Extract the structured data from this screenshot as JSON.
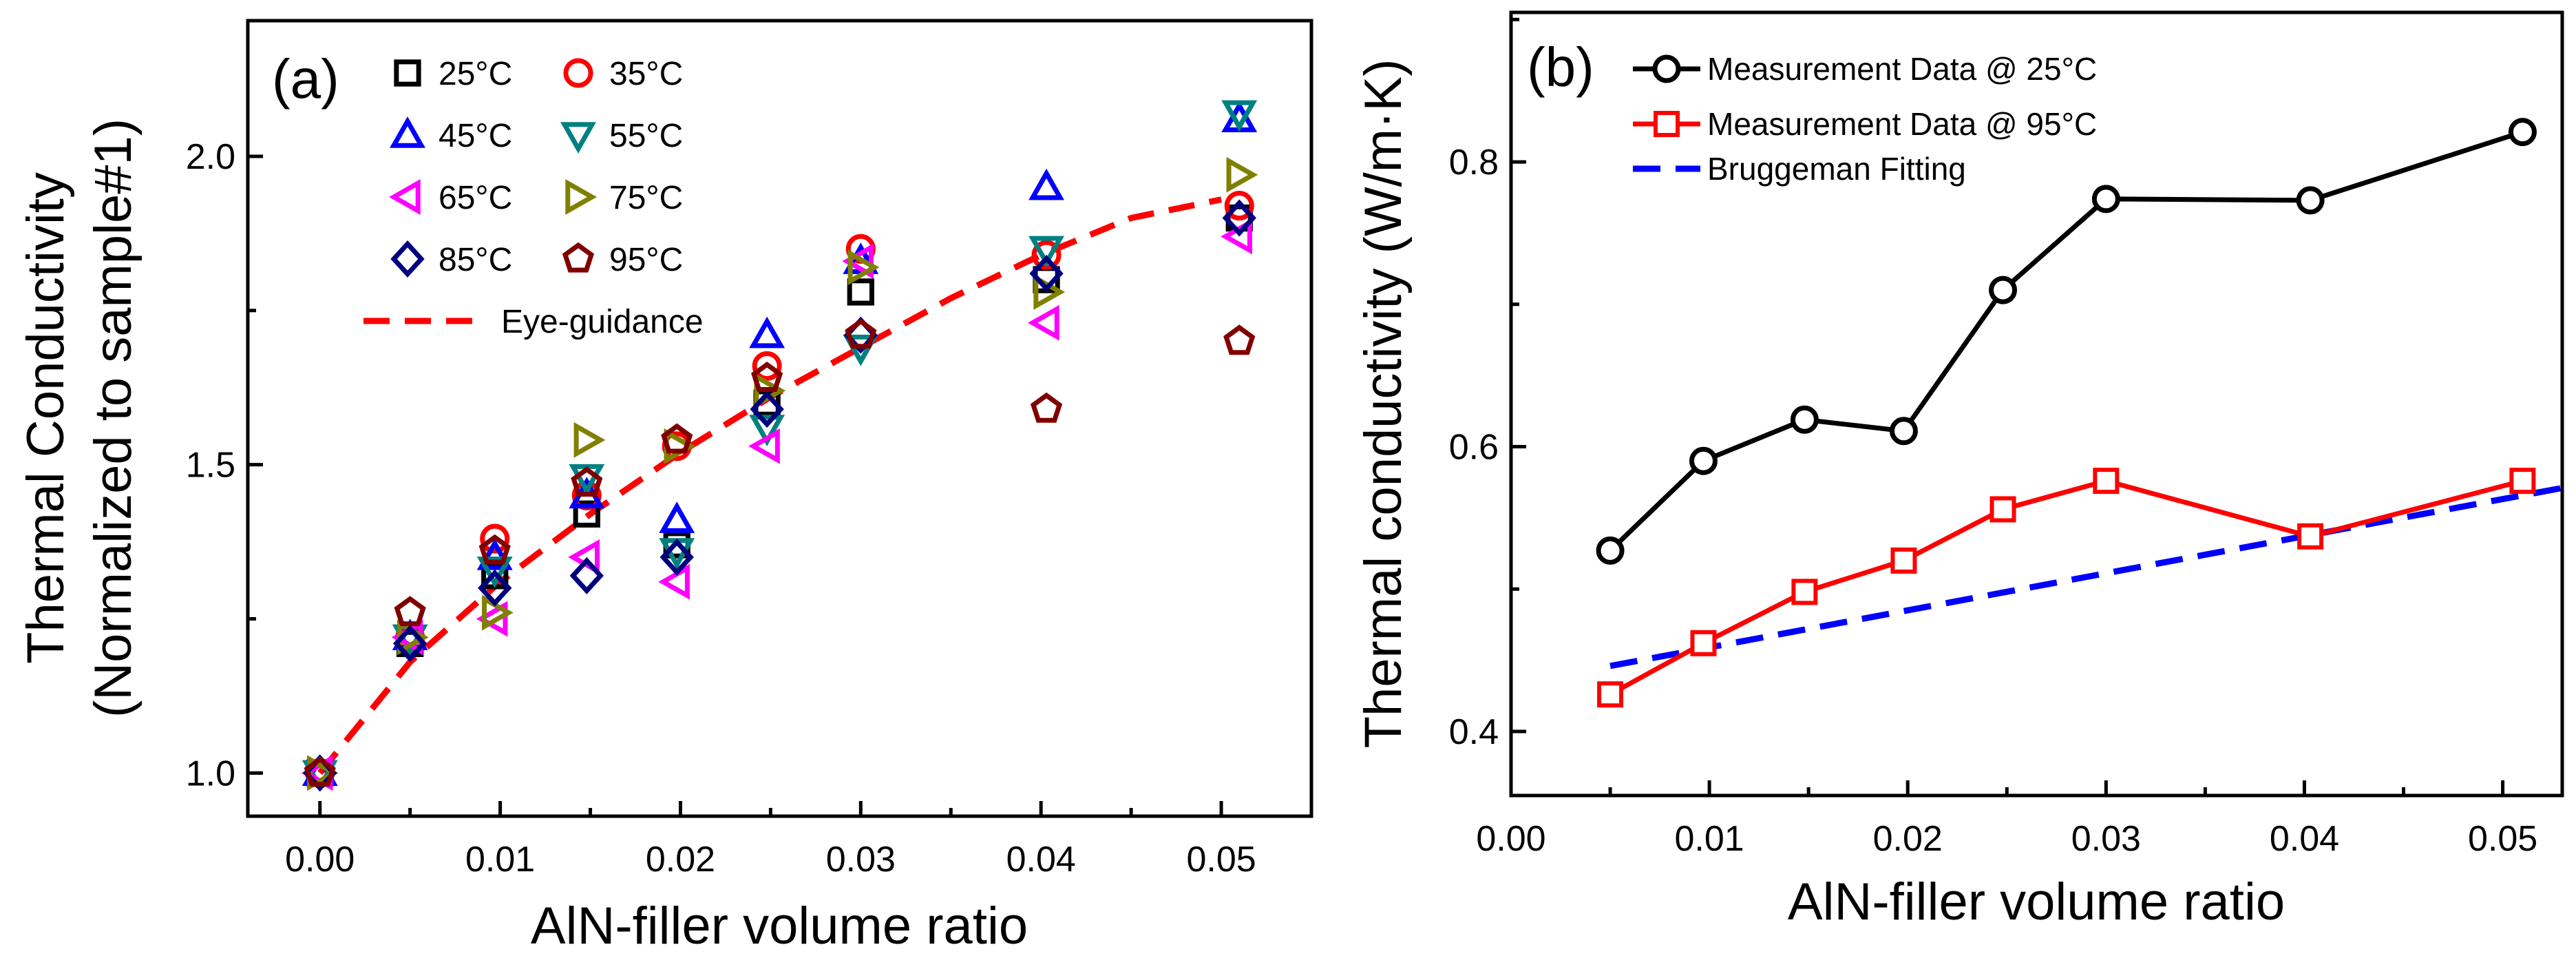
{
  "chart_data": [
    {
      "panel": "(a)",
      "type": "scatter",
      "xlabel": "AlN-filler volume ratio",
      "ylabel_line1": "Thermal Conductivity",
      "ylabel_line2": "(Normalized to sample#1)",
      "xlim": [
        -0.004,
        0.055
      ],
      "ylim": [
        0.93,
        2.22
      ],
      "xticks": [
        0.0,
        0.01,
        0.02,
        0.03,
        0.04,
        0.05
      ],
      "xtick_labels": [
        "0.00",
        "0.01",
        "0.02",
        "0.03",
        "0.04",
        "0.05"
      ],
      "yticks": [
        1.0,
        1.5,
        2.0
      ],
      "ytick_labels": [
        "1.0",
        "1.5",
        "2.0"
      ],
      "x": [
        0.0,
        0.005,
        0.0097,
        0.0148,
        0.0198,
        0.0248,
        0.03,
        0.0403,
        0.051
      ],
      "series": [
        {
          "name": "25°C",
          "label": "25°C",
          "marker": "square",
          "color": "#000000",
          "values": [
            1.0,
            1.21,
            1.32,
            1.42,
            1.37,
            1.6,
            1.78,
            1.8,
            1.9
          ]
        },
        {
          "name": "35°C",
          "label": "35°C",
          "marker": "circle",
          "color": "#ff0000",
          "values": [
            1.0,
            1.22,
            1.38,
            1.45,
            1.53,
            1.66,
            1.85,
            1.84,
            1.92
          ]
        },
        {
          "name": "45°C",
          "label": "45°C",
          "marker": "triangle-up",
          "color": "#0000ff",
          "values": [
            1.0,
            1.22,
            1.35,
            1.45,
            1.41,
            1.71,
            1.83,
            1.95,
            2.06
          ]
        },
        {
          "name": "55°C",
          "label": "55°C",
          "marker": "triangle-down",
          "color": "#008080",
          "values": [
            1.0,
            1.22,
            1.33,
            1.48,
            1.36,
            1.56,
            1.69,
            1.85,
            2.07
          ]
        },
        {
          "name": "65°C",
          "label": "65°C",
          "marker": "triangle-left",
          "color": "#ff00ff",
          "values": [
            1.0,
            1.22,
            1.25,
            1.35,
            1.31,
            1.53,
            1.83,
            1.73,
            1.87
          ]
        },
        {
          "name": "75°C",
          "label": "75°C",
          "marker": "triangle-right",
          "color": "#808000",
          "values": [
            1.0,
            1.22,
            1.26,
            1.54,
            1.53,
            1.62,
            1.82,
            1.78,
            1.97
          ]
        },
        {
          "name": "85°C",
          "label": "85°C",
          "marker": "diamond",
          "color": "#00007f",
          "values": [
            1.0,
            1.21,
            1.3,
            1.32,
            1.35,
            1.59,
            1.71,
            1.81,
            1.9
          ]
        },
        {
          "name": "95°C",
          "label": "95°C",
          "marker": "pentagon",
          "color": "#800000",
          "values": [
            1.0,
            1.26,
            1.36,
            1.47,
            1.54,
            1.64,
            1.71,
            1.59,
            1.7
          ]
        }
      ],
      "fit": {
        "name": "Eye-guidance",
        "label": "Eye-guidance",
        "style": "dashed",
        "color": "#ff0000",
        "x": [
          0.0,
          0.005,
          0.01,
          0.015,
          0.02,
          0.025,
          0.03,
          0.035,
          0.04,
          0.045,
          0.05
        ],
        "values": [
          1.0,
          1.18,
          1.31,
          1.42,
          1.52,
          1.61,
          1.69,
          1.77,
          1.84,
          1.9,
          1.93
        ]
      }
    },
    {
      "panel": "(b)",
      "type": "line",
      "xlabel": "AlN-filler volume ratio",
      "ylabel": "Thermal conductivity (W/m·K)",
      "xlim": [
        0.0,
        0.053
      ],
      "ylim": [
        0.355,
        0.905
      ],
      "xticks": [
        0.0,
        0.01,
        0.02,
        0.03,
        0.04,
        0.05
      ],
      "xtick_labels": [
        "0.00",
        "0.01",
        "0.02",
        "0.03",
        "0.04",
        "0.05"
      ],
      "yticks": [
        0.4,
        0.6,
        0.8
      ],
      "ytick_labels": [
        "0.4",
        "0.6",
        "0.8"
      ],
      "series": [
        {
          "name": "Measurement Data @ 25°C",
          "label": "Measurement Data @ 25°C",
          "marker": "circle",
          "color": "#000000",
          "x": [
            0.005,
            0.0097,
            0.0148,
            0.0198,
            0.0248,
            0.03,
            0.0403,
            0.051
          ],
          "values": [
            0.527,
            0.59,
            0.619,
            0.611,
            0.71,
            0.774,
            0.773,
            0.821
          ]
        },
        {
          "name": "Measurement Data @ 95°C",
          "label": "Measurement Data @ 95°C",
          "marker": "square",
          "color": "#ff0000",
          "x": [
            0.005,
            0.0097,
            0.0148,
            0.0198,
            0.0248,
            0.03,
            0.0403,
            0.051
          ],
          "values": [
            0.426,
            0.462,
            0.498,
            0.52,
            0.556,
            0.576,
            0.537,
            0.576
          ]
        }
      ],
      "fit": {
        "name": "Bruggeman Fitting",
        "label": "Bruggeman Fitting",
        "style": "dashed",
        "color": "#0000ff",
        "x": [
          0.005,
          0.053
        ],
        "values": [
          0.446,
          0.571
        ]
      }
    }
  ]
}
